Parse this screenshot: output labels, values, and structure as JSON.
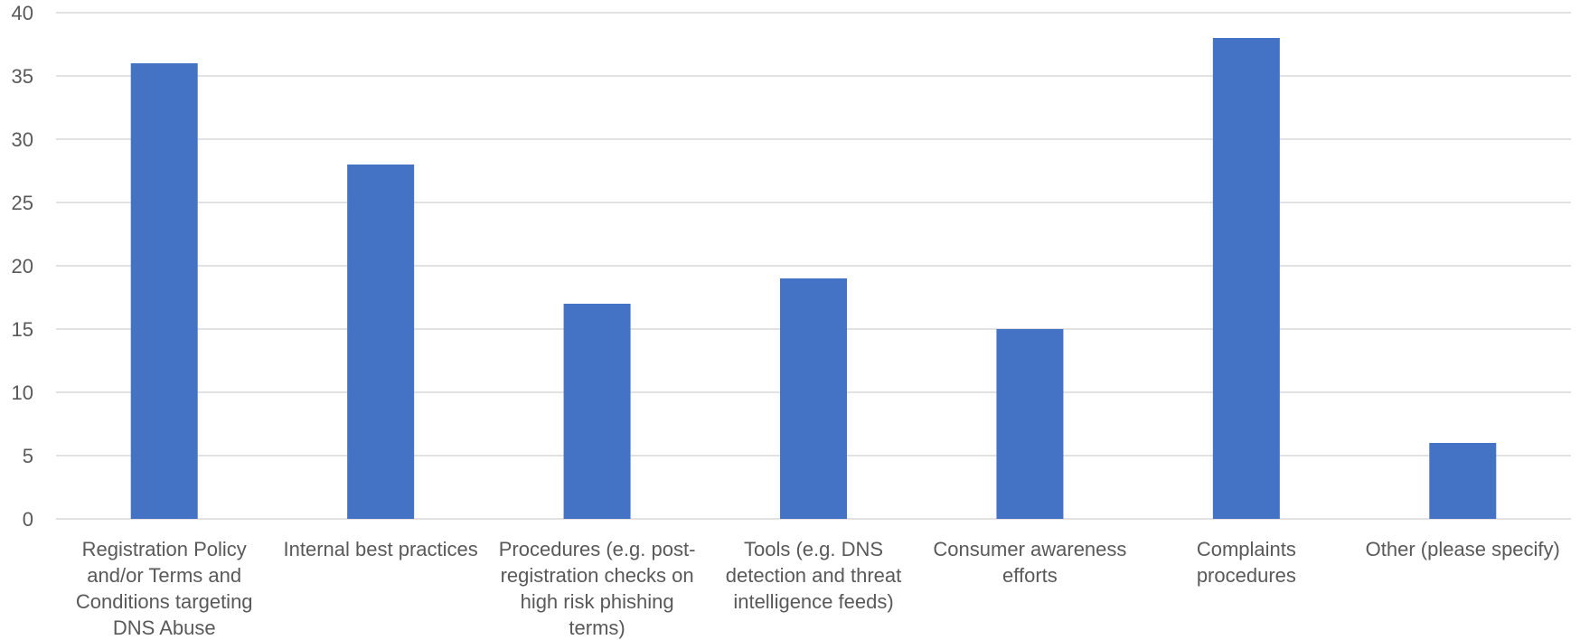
{
  "chart_data": {
    "type": "bar",
    "title": "",
    "xlabel": "",
    "ylabel": "",
    "ylim": [
      0,
      40
    ],
    "yticks": [
      0,
      5,
      10,
      15,
      20,
      25,
      30,
      35,
      40
    ],
    "grid": true,
    "categories": [
      [
        "Registration Policy",
        "and/or Terms and",
        "Conditions targeting",
        "DNS Abuse"
      ],
      [
        "Internal best practices"
      ],
      [
        "Procedures (e.g. post-",
        "registration checks on",
        "high risk phishing",
        "terms)"
      ],
      [
        "Tools (e.g. DNS",
        "detection and threat",
        "intelligence feeds)"
      ],
      [
        "Consumer awareness",
        "efforts"
      ],
      [
        "Complaints",
        "procedures"
      ],
      [
        "Other (please specify)"
      ]
    ],
    "values": [
      36,
      28,
      17,
      19,
      15,
      38,
      6
    ],
    "bar_color": "#4472c4"
  }
}
